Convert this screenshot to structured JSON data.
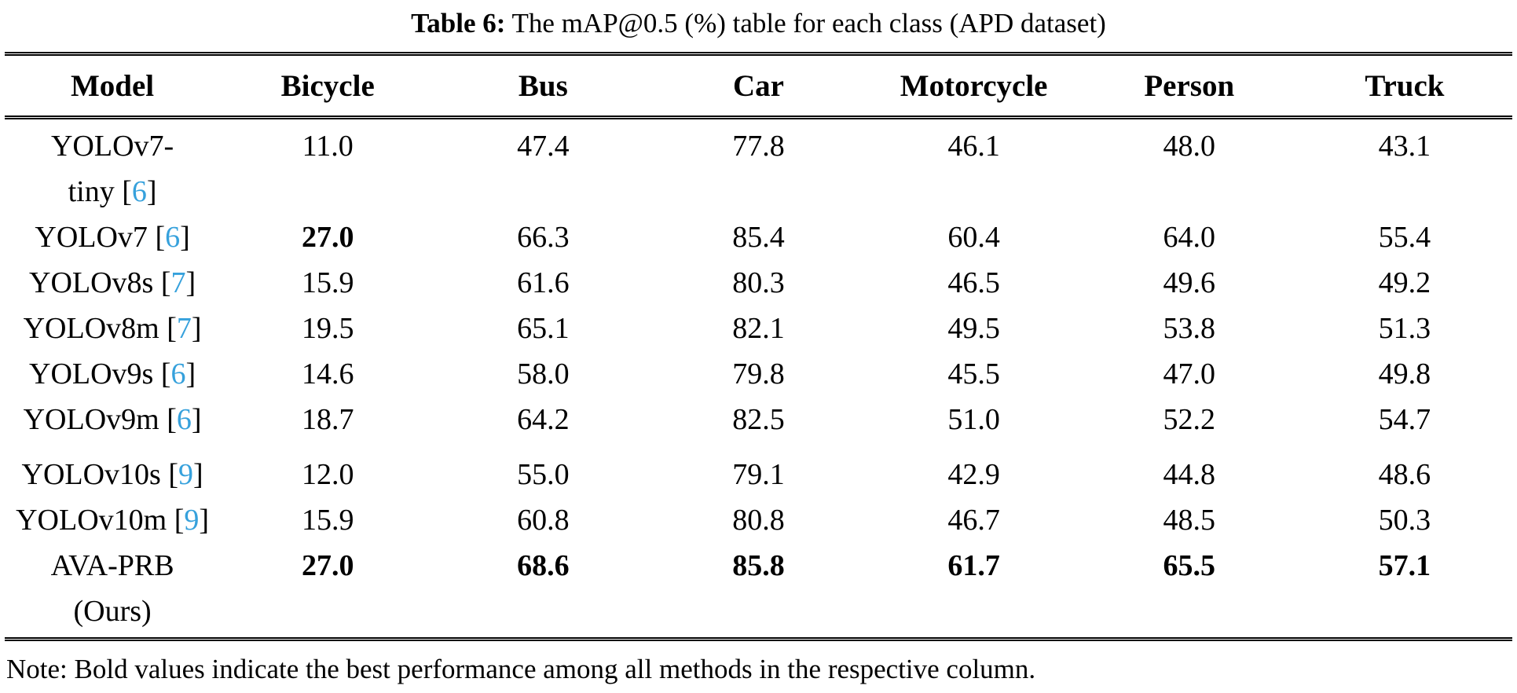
{
  "caption": {
    "label": "Table 6:",
    "text": "The mAP@0.5 (%) table for each class (APD dataset)"
  },
  "colors": {
    "text": "#000000",
    "citation_blue": "#36a1dc",
    "rule": "#000000",
    "background": "#ffffff"
  },
  "table": {
    "columns": [
      "Model",
      "Bicycle",
      "Bus",
      "Car",
      "Motorcycle",
      "Person",
      "Truck"
    ],
    "rows": [
      {
        "model_line1": "YOLOv7-",
        "model_line2": "tiny",
        "citation": "6",
        "citation_line": 2,
        "values": [
          "11.0",
          "47.4",
          "77.8",
          "46.1",
          "48.0",
          "43.1"
        ],
        "bold_values": [
          false,
          false,
          false,
          false,
          false,
          false
        ],
        "extra_gap": false
      },
      {
        "model_line1": "YOLOv7",
        "model_line2": null,
        "citation": "6",
        "citation_line": 1,
        "values": [
          "27.0",
          "66.3",
          "85.4",
          "60.4",
          "64.0",
          "55.4"
        ],
        "bold_values": [
          true,
          false,
          false,
          false,
          false,
          false
        ],
        "extra_gap": false
      },
      {
        "model_line1": "YOLOv8s",
        "model_line2": null,
        "citation": "7",
        "citation_line": 1,
        "values": [
          "15.9",
          "61.6",
          "80.3",
          "46.5",
          "49.6",
          "49.2"
        ],
        "bold_values": [
          false,
          false,
          false,
          false,
          false,
          false
        ],
        "extra_gap": false
      },
      {
        "model_line1": "YOLOv8m",
        "model_line2": null,
        "citation": "7",
        "citation_line": 1,
        "values": [
          "19.5",
          "65.1",
          "82.1",
          "49.5",
          "53.8",
          "51.3"
        ],
        "bold_values": [
          false,
          false,
          false,
          false,
          false,
          false
        ],
        "extra_gap": false
      },
      {
        "model_line1": "YOLOv9s",
        "model_line2": null,
        "citation": "6",
        "citation_line": 1,
        "values": [
          "14.6",
          "58.0",
          "79.8",
          "45.5",
          "47.0",
          "49.8"
        ],
        "bold_values": [
          false,
          false,
          false,
          false,
          false,
          false
        ],
        "extra_gap": false
      },
      {
        "model_line1": "YOLOv9m",
        "model_line2": null,
        "citation": "6",
        "citation_line": 1,
        "values": [
          "18.7",
          "64.2",
          "82.5",
          "51.0",
          "52.2",
          "54.7"
        ],
        "bold_values": [
          false,
          false,
          false,
          false,
          false,
          false
        ],
        "extra_gap": false
      },
      {
        "model_line1": "YOLOv10s",
        "model_line2": null,
        "citation": "9",
        "citation_line": 1,
        "values": [
          "12.0",
          "55.0",
          "79.1",
          "42.9",
          "44.8",
          "48.6"
        ],
        "bold_values": [
          false,
          false,
          false,
          false,
          false,
          false
        ],
        "extra_gap": true
      },
      {
        "model_line1": "YOLOv10m",
        "model_line2": null,
        "citation": "9",
        "citation_line": 1,
        "values": [
          "15.9",
          "60.8",
          "80.8",
          "46.7",
          "48.5",
          "50.3"
        ],
        "bold_values": [
          false,
          false,
          false,
          false,
          false,
          false
        ],
        "extra_gap": false
      },
      {
        "model_line1": "AVA-PRB",
        "model_line2": "(Ours)",
        "citation": null,
        "citation_line": 0,
        "values": [
          "27.0",
          "68.6",
          "85.8",
          "61.7",
          "65.5",
          "57.1"
        ],
        "bold_values": [
          true,
          true,
          true,
          true,
          true,
          true
        ],
        "extra_gap": false
      }
    ]
  },
  "note": "Note: Bold values indicate the best performance among all methods in the respective column."
}
